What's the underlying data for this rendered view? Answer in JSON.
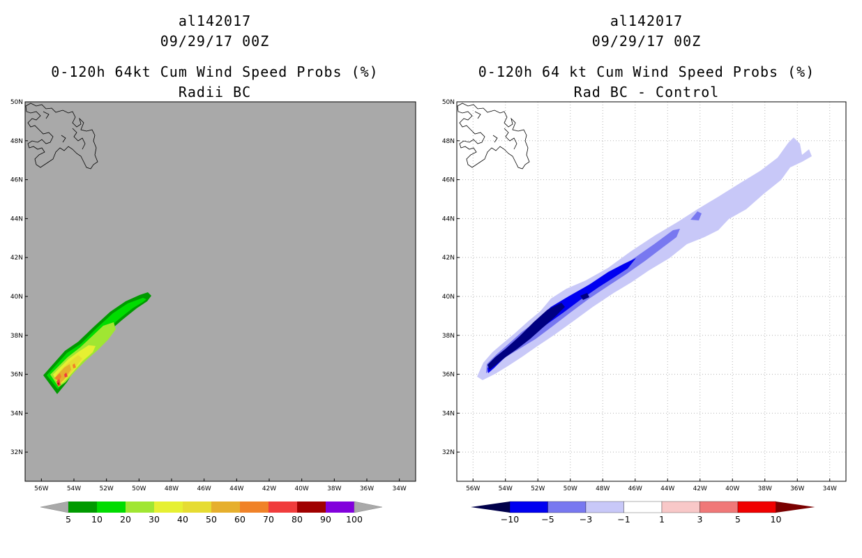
{
  "panels": [
    {
      "id": "left",
      "storm_id": "al142017",
      "datetime": "09/29/17 00Z",
      "title": "0-120h 64kt Cum Wind Speed Probs (%)",
      "subtitle": "Radii BC",
      "background_color": "#a9a9a9",
      "colorbar": {
        "labels": [
          "5",
          "10",
          "20",
          "30",
          "40",
          "50",
          "60",
          "70",
          "80",
          "90",
          "100"
        ],
        "colors": [
          "#009a00",
          "#00dc00",
          "#a0e632",
          "#e6f032",
          "#e6dc32",
          "#e6af2d",
          "#f08228",
          "#f03c3c",
          "#a00000",
          "#8200dc"
        ],
        "end_arrow_color": "#a9a9a9"
      }
    },
    {
      "id": "right",
      "storm_id": "al142017",
      "datetime": "09/29/17 00Z",
      "title": "0-120h 64 kt Cum Wind Speed Probs (%)",
      "subtitle": "Rad BC - Control",
      "background_color": "#ffffff",
      "colorbar": {
        "labels": [
          "-10",
          "-5",
          "-3",
          "-1",
          "1",
          "3",
          "5",
          "10"
        ],
        "colors": [
          "#000080",
          "#0000f0",
          "#7878f0",
          "#c8c8f8",
          "#ffffff",
          "#f8c8c8",
          "#f07878",
          "#f00000"
        ],
        "low_arrow_color": "#00004a",
        "high_arrow_color": "#7a0000"
      }
    }
  ],
  "axes": {
    "lon_labels": [
      "56W",
      "54W",
      "52W",
      "50W",
      "48W",
      "46W",
      "44W",
      "42W",
      "40W",
      "38W",
      "36W",
      "34W"
    ],
    "lat_labels": [
      "32N",
      "34N",
      "36N",
      "38N",
      "40N",
      "42N",
      "44N",
      "46N",
      "48N",
      "50N"
    ],
    "lon_range": [
      -57,
      -33
    ],
    "lat_range": [
      30.5,
      50
    ]
  },
  "map": {
    "projection": "latlon",
    "features": [
      "Newfoundland coastline"
    ]
  }
}
